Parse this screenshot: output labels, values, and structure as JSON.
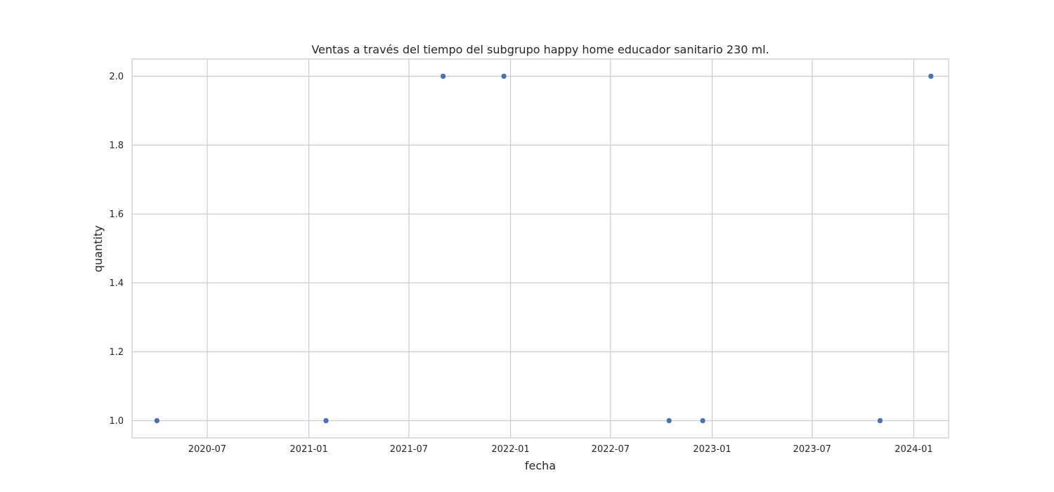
{
  "chart_data": {
    "type": "scatter",
    "title": "Ventas a través del tiempo del subgrupo happy home educador sanitario 230 ml.",
    "xlabel": "fecha",
    "ylabel": "quantity",
    "x_ticks": [
      "2020-07",
      "2021-01",
      "2021-07",
      "2022-01",
      "2022-07",
      "2023-01",
      "2023-07",
      "2024-01"
    ],
    "y_ticks": [
      "1.0",
      "1.2",
      "1.4",
      "1.6",
      "1.8",
      "2.0"
    ],
    "xlim": [
      "2020-02-16",
      "2024-03-04"
    ],
    "ylim": [
      0.95,
      2.05
    ],
    "grid": true,
    "series": [
      {
        "color": "#4c72b0",
        "points": [
          {
            "x": "2020-04-01",
            "y": 1
          },
          {
            "x": "2021-02-01",
            "y": 1
          },
          {
            "x": "2021-09-01",
            "y": 2
          },
          {
            "x": "2021-12-20",
            "y": 2
          },
          {
            "x": "2022-10-15",
            "y": 1
          },
          {
            "x": "2022-12-15",
            "y": 1
          },
          {
            "x": "2023-11-01",
            "y": 1
          },
          {
            "x": "2024-02-01",
            "y": 2
          }
        ]
      }
    ]
  }
}
